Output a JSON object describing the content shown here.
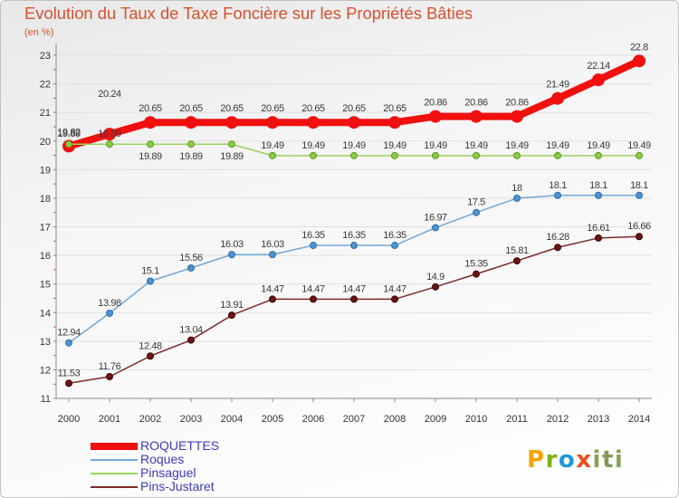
{
  "chart_data": {
    "type": "line",
    "title": "Evolution du Taux de Taxe Foncière sur les Propriétés Bâties",
    "ylabel": "(en %)",
    "categories": [
      "2000",
      "2001",
      "2002",
      "2003",
      "2004",
      "2005",
      "2006",
      "2007",
      "2008",
      "2009",
      "2010",
      "2011",
      "2012",
      "2013",
      "2014"
    ],
    "ylim": [
      11,
      23
    ],
    "y_ticks": [
      11,
      12,
      13,
      14,
      15,
      16,
      17,
      18,
      19,
      20,
      21,
      22,
      23
    ],
    "grid": true,
    "legend": "bottom-left",
    "series": [
      {
        "name": "ROQUETTES",
        "color": "#f01010",
        "values": [
          19.82,
          20.24,
          20.65,
          20.65,
          20.65,
          20.65,
          20.65,
          20.65,
          20.65,
          20.86,
          20.86,
          20.86,
          21.49,
          22.14,
          22.8
        ]
      },
      {
        "name": "Roques",
        "color": "#72a8d8",
        "values": [
          12.94,
          13.98,
          15.1,
          15.56,
          16.03,
          16.03,
          16.35,
          16.35,
          16.35,
          16.97,
          17.5,
          18,
          18.1,
          18.1,
          18.1
        ]
      },
      {
        "name": "Pinsaguel",
        "color": "#9ad45e",
        "values": [
          19.89,
          19.89,
          19.89,
          19.89,
          19.89,
          19.49,
          19.49,
          19.49,
          19.49,
          19.49,
          19.49,
          19.49,
          19.49,
          19.49,
          19.49
        ]
      },
      {
        "name": "Pins-Justaret",
        "color": "#7b2a2a",
        "values": [
          11.53,
          11.76,
          12.48,
          13.04,
          13.91,
          14.47,
          14.47,
          14.47,
          14.47,
          14.9,
          15.35,
          15.81,
          16.28,
          16.61,
          16.66
        ]
      }
    ]
  },
  "logo": "Proxiti",
  "logo_colors": [
    "#f5a200",
    "#7bb31a",
    "#1e9ad6",
    "#e8501c",
    "#8aa05a",
    "#7f9a55",
    "#8aa05a"
  ]
}
